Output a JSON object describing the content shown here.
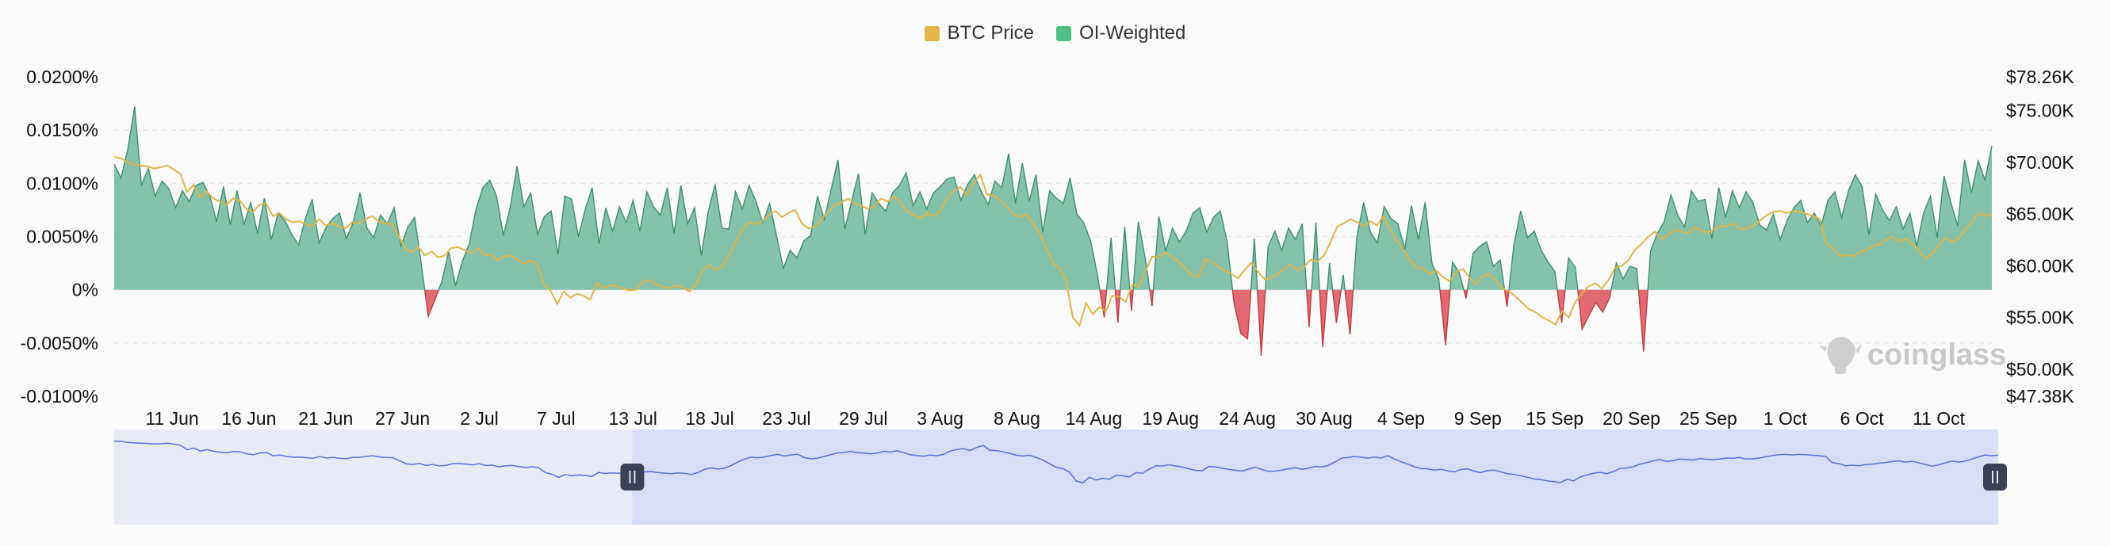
{
  "legend": {
    "btc_label": "BTC Price",
    "oi_label": "OI-Weighted"
  },
  "watermark": {
    "text": "coinglass",
    "icon": "coinglass-logo-icon"
  },
  "navigator": {
    "left_handle_icon": "pause-grip-icon",
    "right_handle_icon": "pause-grip-icon",
    "selected_range_start_fraction": 0.275,
    "selected_range_end_fraction": 1.0
  },
  "colors": {
    "positive": "#6fb79d",
    "negative": "#e0626a",
    "btc": "#e2b548",
    "navigator_line": "#5b6ee1",
    "navigator_fill": "#d9ddf8",
    "navigator_bg": "#e8eaf5"
  },
  "chart_data": {
    "type": "area",
    "title": "",
    "legend_position": "top-center",
    "grid": true,
    "x_tick_labels": [
      "11 Jun",
      "16 Jun",
      "21 Jun",
      "27 Jun",
      "2 Jul",
      "7 Jul",
      "13 Jul",
      "18 Jul",
      "23 Jul",
      "29 Jul",
      "3 Aug",
      "8 Aug",
      "14 Aug",
      "19 Aug",
      "24 Aug",
      "30 Aug",
      "4 Sep",
      "9 Sep",
      "15 Sep",
      "20 Sep",
      "25 Sep",
      "1 Oct",
      "6 Oct",
      "11 Oct"
    ],
    "y_left": {
      "label": "",
      "tick_labels": [
        "0.0200%",
        "0.0150%",
        "0.0100%",
        "0.0050%",
        "0%",
        "-0.0050%",
        "-0.0100%"
      ],
      "range": [
        -0.01,
        0.02
      ]
    },
    "y_right": {
      "label": "",
      "tick_labels": [
        "$78.26K",
        "$75.00K",
        "$70.00K",
        "$65.00K",
        "$60.00K",
        "$55.00K",
        "$50.00K",
        "$47.38K"
      ],
      "range": [
        47.38,
        78.26
      ]
    },
    "series": [
      {
        "name": "OI-Weighted",
        "axis": "left",
        "unit": "%",
        "values": [
          0.0118,
          0.0105,
          0.0132,
          0.0172,
          0.0098,
          0.0114,
          0.0088,
          0.0102,
          0.0095,
          0.0077,
          0.0093,
          0.0083,
          0.0098,
          0.0101,
          0.0088,
          0.0064,
          0.0097,
          0.0061,
          0.0093,
          0.0061,
          0.0082,
          0.0053,
          0.0086,
          0.0047,
          0.0072,
          0.0065,
          0.0052,
          0.0042,
          0.0067,
          0.0085,
          0.0044,
          0.0058,
          0.0067,
          0.0072,
          0.0048,
          0.0063,
          0.0091,
          0.0058,
          0.0049,
          0.007,
          0.0062,
          0.0077,
          0.0041,
          0.0059,
          0.0068,
          0.0023,
          -0.0025,
          -0.0009,
          0.0008,
          0.0036,
          0.0004,
          0.0027,
          0.0043,
          0.0076,
          0.0096,
          0.0103,
          0.0088,
          0.0051,
          0.0077,
          0.0116,
          0.0078,
          0.0091,
          0.0052,
          0.0069,
          0.0074,
          0.0033,
          0.0088,
          0.0085,
          0.005,
          0.0076,
          0.0096,
          0.0043,
          0.0077,
          0.0055,
          0.0078,
          0.0063,
          0.0084,
          0.0055,
          0.0092,
          0.0078,
          0.007,
          0.0096,
          0.0053,
          0.0098,
          0.0062,
          0.0077,
          0.0032,
          0.0073,
          0.0099,
          0.0058,
          0.0057,
          0.0092,
          0.0076,
          0.0098,
          0.0083,
          0.0063,
          0.0081,
          0.0051,
          0.002,
          0.0037,
          0.003,
          0.0046,
          0.0051,
          0.0088,
          0.0066,
          0.0094,
          0.0122,
          0.0057,
          0.0083,
          0.0109,
          0.0052,
          0.0091,
          0.0081,
          0.0074,
          0.0091,
          0.0098,
          0.011,
          0.0079,
          0.0092,
          0.0076,
          0.0091,
          0.0097,
          0.0104,
          0.0106,
          0.0084,
          0.0099,
          0.0108,
          0.0092,
          0.008,
          0.0102,
          0.0096,
          0.0128,
          0.0081,
          0.0119,
          0.0083,
          0.0108,
          0.0054,
          0.0093,
          0.0086,
          0.0081,
          0.0105,
          0.0071,
          0.0063,
          0.0046,
          0.0014,
          -0.0026,
          0.0049,
          -0.0031,
          0.0059,
          -0.002,
          0.0064,
          0.003,
          -0.0015,
          0.0069,
          0.0036,
          0.0058,
          0.0045,
          0.0055,
          0.0072,
          0.0077,
          0.0054,
          0.0068,
          0.0074,
          0.0045,
          -0.0012,
          -0.0041,
          -0.0046,
          0.0048,
          -0.0062,
          0.004,
          0.0055,
          0.0037,
          0.0058,
          0.0047,
          0.0062,
          -0.0035,
          0.0063,
          -0.0054,
          0.0025,
          -0.0031,
          0.0014,
          -0.0042,
          0.005,
          0.0082,
          0.0054,
          0.0044,
          0.0078,
          0.0067,
          0.0062,
          0.0038,
          0.0079,
          0.0047,
          0.0082,
          0.0025,
          0.001,
          -0.0052,
          0.0026,
          0.0016,
          -0.0008,
          0.0034,
          0.0041,
          0.0045,
          0.0022,
          0.0028,
          -0.0016,
          0.0042,
          0.0074,
          0.0049,
          0.0055,
          0.0037,
          0.0026,
          0.0017,
          -0.0031,
          0.003,
          0.0021,
          -0.0037,
          -0.0024,
          -0.0012,
          -0.0021,
          -0.0008,
          0.0025,
          0.001,
          0.0022,
          0.002,
          -0.0058,
          0.0036,
          0.0053,
          0.0064,
          0.0089,
          0.007,
          0.0059,
          0.0093,
          0.0083,
          0.0085,
          0.0048,
          0.0096,
          0.0068,
          0.0093,
          0.0077,
          0.0092,
          0.0082,
          0.0061,
          0.0056,
          0.0071,
          0.0047,
          0.0065,
          0.0077,
          0.0084,
          0.0063,
          0.0072,
          0.006,
          0.0084,
          0.0092,
          0.0068,
          0.0093,
          0.0108,
          0.0097,
          0.0052,
          0.009,
          0.0075,
          0.0065,
          0.0078,
          0.0057,
          0.0072,
          0.0041,
          0.0072,
          0.0088,
          0.0049,
          0.0107,
          0.0082,
          0.006,
          0.0122,
          0.0091,
          0.0121,
          0.0103,
          0.0135
        ]
      },
      {
        "name": "BTC Price",
        "axis": "right",
        "unit": "K USD",
        "values": [
          70.5,
          70.4,
          70.0,
          69.8,
          69.7,
          69.6,
          69.4,
          69.5,
          69.7,
          69.3,
          68.9,
          67.1,
          67.8,
          66.6,
          67.2,
          66.5,
          66.2,
          65.9,
          66.5,
          66.3,
          65.5,
          65.2,
          65.9,
          66.0,
          64.8,
          65.1,
          64.5,
          64.2,
          64.3,
          64.0,
          63.8,
          64.5,
          63.9,
          64.1,
          63.8,
          63.6,
          64.2,
          64.1,
          64.5,
          64.8,
          64.3,
          64.1,
          64.0,
          62.9,
          61.7,
          61.3,
          61.8,
          61.0,
          61.4,
          60.8,
          61.0,
          61.7,
          61.8,
          61.5,
          61.2,
          61.7,
          61.0,
          61.1,
          60.5,
          60.9,
          61.0,
          60.6,
          60.2,
          60.5,
          60.1,
          58.2,
          57.6,
          56.3,
          57.5,
          56.9,
          57.3,
          57.1,
          56.7,
          58.3,
          57.9,
          58.1,
          58.0,
          57.8,
          57.6,
          57.7,
          58.5,
          58.6,
          58.2,
          58.0,
          57.8,
          58.1,
          57.9,
          57.5,
          58.2,
          59.5,
          60.1,
          59.6,
          59.9,
          61.0,
          62.3,
          63.5,
          64.2,
          64.0,
          64.3,
          64.9,
          65.3,
          64.7,
          65.1,
          65.4,
          64.1,
          63.6,
          63.8,
          64.5,
          65.2,
          65.9,
          66.1,
          66.5,
          66.0,
          65.8,
          65.5,
          65.8,
          66.5,
          66.2,
          66.7,
          66.0,
          65.2,
          64.9,
          64.6,
          65.1,
          64.8,
          65.3,
          66.6,
          67.2,
          67.6,
          66.8,
          68.0,
          68.8,
          66.9,
          66.8,
          66.3,
          65.7,
          65.0,
          64.7,
          65.0,
          64.1,
          63.1,
          61.7,
          60.2,
          59.8,
          58.4,
          55.0,
          54.2,
          56.4,
          55.3,
          56.0,
          55.6,
          57.1,
          57.0,
          56.5,
          58.2,
          58.0,
          59.5,
          60.9,
          60.8,
          61.3,
          60.8,
          60.4,
          59.7,
          59.1,
          58.9,
          60.6,
          60.4,
          59.9,
          59.5,
          59.2,
          58.8,
          59.6,
          60.3,
          59.4,
          58.7,
          58.8,
          59.2,
          59.7,
          60.1,
          59.5,
          59.9,
          60.6,
          60.4,
          61.0,
          62.3,
          63.8,
          64.1,
          64.5,
          64.2,
          63.8,
          64.3,
          63.9,
          64.8,
          63.5,
          62.4,
          61.5,
          60.5,
          59.8,
          59.7,
          59.2,
          59.5,
          58.9,
          58.5,
          59.4,
          59.7,
          58.8,
          58.2,
          59.0,
          59.2,
          58.5,
          57.8,
          57.5,
          57.0,
          56.4,
          55.8,
          55.5,
          55.0,
          54.7,
          54.3,
          55.6,
          55.0,
          56.5,
          57.3,
          58.0,
          58.3,
          57.8,
          58.6,
          59.8,
          60.0,
          60.5,
          61.5,
          62.1,
          62.8,
          63.3,
          62.6,
          62.9,
          63.5,
          63.3,
          63.1,
          63.7,
          63.4,
          63.2,
          63.5,
          63.9,
          63.8,
          64.1,
          63.5,
          63.6,
          63.9,
          64.4,
          64.9,
          65.2,
          65.3,
          65.1,
          65.3,
          65.2,
          65.0,
          64.8,
          64.5,
          62.1,
          61.7,
          60.9,
          61.1,
          60.9,
          61.3,
          61.5,
          61.9,
          62.1,
          62.5,
          62.8,
          62.3,
          62.6,
          62.1,
          61.4,
          60.7,
          61.2,
          62.0,
          62.7,
          62.3,
          62.7,
          63.5,
          64.3,
          65.1,
          64.8,
          65.0
        ]
      }
    ]
  }
}
